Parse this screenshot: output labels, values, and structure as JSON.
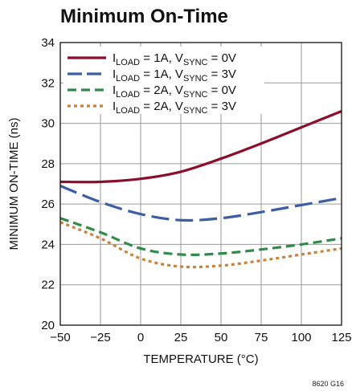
{
  "chart_data": {
    "type": "line",
    "title": "Minimum On-Time",
    "xlabel": "TEMPERATURE (°C)",
    "ylabel": "MINIMUM ON-TIME (ns)",
    "xlim": [
      -50,
      125
    ],
    "ylim": [
      20,
      34
    ],
    "x_ticks": [
      "−50",
      "−25",
      "0",
      "25",
      "50",
      "75",
      "100",
      "125"
    ],
    "y_ticks": [
      "20",
      "22",
      "24",
      "26",
      "28",
      "30",
      "32",
      "34"
    ],
    "grid": true,
    "legend": "top-left",
    "figure_id": "8620 G16",
    "x": [
      -50,
      -25,
      0,
      25,
      50,
      75,
      100,
      125
    ],
    "series": [
      {
        "legend_parts": [
          "I",
          "LOAD",
          " = 1A, V",
          "SYNC",
          " = 0V"
        ],
        "color": "#8b0e2a",
        "dash": "solid",
        "values": [
          27.1,
          27.1,
          27.25,
          27.6,
          28.25,
          29.0,
          29.8,
          30.6
        ]
      },
      {
        "legend_parts": [
          "I",
          "LOAD",
          " = 1A, V",
          "SYNC",
          " = 3V"
        ],
        "color": "#3d5ea3",
        "dash": "long-dash",
        "values": [
          26.9,
          26.1,
          25.5,
          25.2,
          25.3,
          25.6,
          25.95,
          26.3
        ]
      },
      {
        "legend_parts": [
          "I",
          "LOAD",
          " = 2A, V",
          "SYNC",
          " = 0V"
        ],
        "color": "#2e8b4a",
        "dash": "dash",
        "values": [
          25.3,
          24.6,
          23.8,
          23.5,
          23.55,
          23.75,
          24.0,
          24.3
        ]
      },
      {
        "legend_parts": [
          "I",
          "LOAD",
          " = 2A, V",
          "SYNC",
          " = 3V"
        ],
        "color": "#c8823c",
        "dash": "dot",
        "values": [
          25.1,
          24.3,
          23.3,
          22.9,
          22.95,
          23.2,
          23.5,
          23.8
        ]
      }
    ]
  }
}
